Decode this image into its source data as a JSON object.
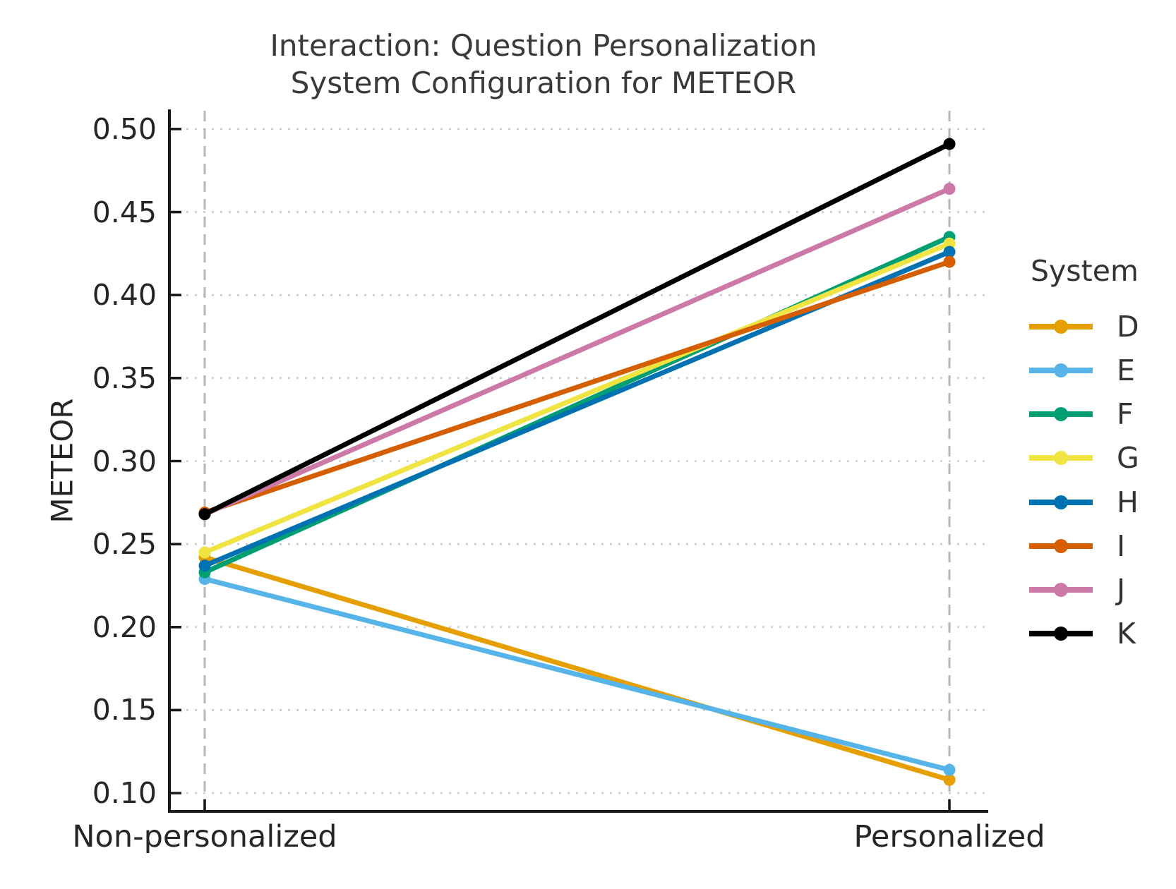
{
  "title": {
    "line1": "Interaction: Question Personalization",
    "line2": "System Configuration for METEOR"
  },
  "chart_data": {
    "type": "line",
    "title": "Interaction: Question Personalization\nSystem Configuration for METEOR",
    "xlabel": "",
    "ylabel": "METEOR",
    "categories": [
      "Non-personalized",
      "Personalized"
    ],
    "yticks": [
      0.1,
      0.15,
      0.2,
      0.25,
      0.3,
      0.35,
      0.4,
      0.45,
      0.5
    ],
    "ylim": [
      0.089,
      0.511
    ],
    "grid": "horizontal dotted gridlines at y ticks; vertical dashed gridlines at the two category positions",
    "legend": {
      "title": "System",
      "position": "right"
    },
    "series": [
      {
        "name": "D",
        "color": "#E69F00",
        "values": [
          0.242,
          0.108
        ]
      },
      {
        "name": "E",
        "color": "#56B4E9",
        "values": [
          0.229,
          0.114
        ]
      },
      {
        "name": "F",
        "color": "#009E73",
        "values": [
          0.233,
          0.435
        ]
      },
      {
        "name": "G",
        "color": "#F0E442",
        "values": [
          0.245,
          0.431
        ]
      },
      {
        "name": "H",
        "color": "#0072B2",
        "values": [
          0.237,
          0.426
        ]
      },
      {
        "name": "I",
        "color": "#D55E00",
        "values": [
          0.269,
          0.42
        ]
      },
      {
        "name": "J",
        "color": "#CC79A7",
        "values": [
          0.268,
          0.464
        ]
      },
      {
        "name": "K",
        "color": "#000000",
        "values": [
          0.268,
          0.491
        ]
      }
    ]
  }
}
